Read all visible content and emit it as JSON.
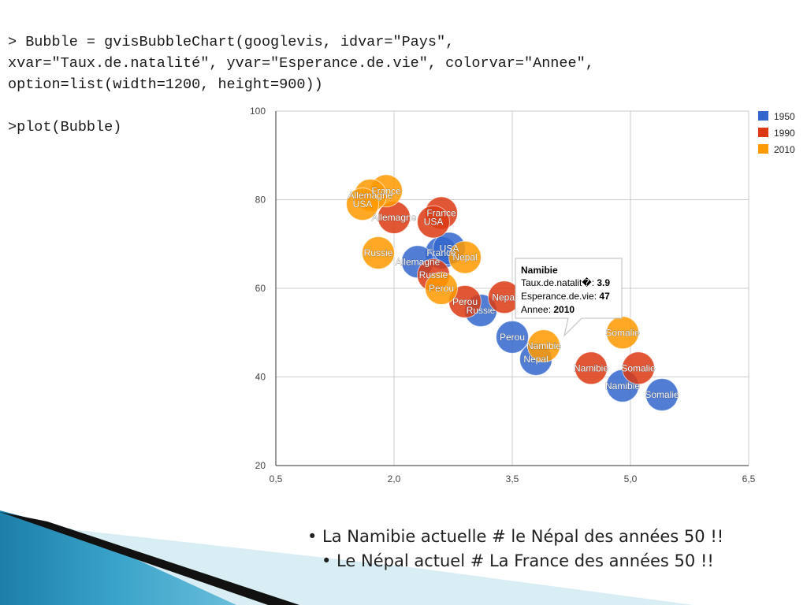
{
  "code_lines": [
    "> Bubble = gvisBubbleChart(googlevis, idvar=\"Pays\",",
    "xvar=\"Taux.de.natalité\", yvar=\"Esperance.de.vie\", colorvar=\"Annee\",",
    "option=list(width=1200, height=900))",
    "",
    ">plot(Bubble)"
  ],
  "bullets": [
    "• La Namibie actuelle # le Népal des années 50 !!",
    "• Le Népal actuel # La France des années 50 !!"
  ],
  "chart_data": {
    "type": "scatter",
    "xlim": [
      0.5,
      6.5
    ],
    "ylim": [
      20,
      100
    ],
    "x_ticks": [
      "0,5",
      "2,0",
      "3,5",
      "5,0",
      "6,5"
    ],
    "y_ticks": [
      "20",
      "40",
      "60",
      "80",
      "100"
    ],
    "grid": true,
    "legend_position": "right",
    "series": [
      {
        "name": "1950",
        "color": "#3366cc",
        "points": [
          {
            "label": "France",
            "x": 2.6,
            "y": 68
          },
          {
            "label": "Allemagne",
            "x": 2.3,
            "y": 66
          },
          {
            "label": "USA",
            "x": 2.7,
            "y": 69
          },
          {
            "label": "Russie",
            "x": 3.1,
            "y": 55
          },
          {
            "label": "Perou",
            "x": 3.5,
            "y": 49
          },
          {
            "label": "Nepal",
            "x": 3.8,
            "y": 44
          },
          {
            "label": "Namibie",
            "x": 4.9,
            "y": 38
          },
          {
            "label": "Somalie",
            "x": 5.4,
            "y": 36
          }
        ]
      },
      {
        "name": "1990",
        "color": "#dc3912",
        "points": [
          {
            "label": "France",
            "x": 2.6,
            "y": 77
          },
          {
            "label": "Allemagne",
            "x": 2.0,
            "y": 76
          },
          {
            "label": "USA",
            "x": 2.5,
            "y": 75
          },
          {
            "label": "Russie",
            "x": 2.5,
            "y": 63
          },
          {
            "label": "Perou",
            "x": 2.9,
            "y": 57
          },
          {
            "label": "Nepal",
            "x": 3.4,
            "y": 58
          },
          {
            "label": "Namibie",
            "x": 4.5,
            "y": 42
          },
          {
            "label": "Somalie",
            "x": 5.1,
            "y": 42
          }
        ]
      },
      {
        "name": "2010",
        "color": "#ff9900",
        "points": [
          {
            "label": "France",
            "x": 1.9,
            "y": 82
          },
          {
            "label": "Allemagne",
            "x": 1.7,
            "y": 81
          },
          {
            "label": "USA",
            "x": 1.6,
            "y": 79
          },
          {
            "label": "Russie",
            "x": 1.8,
            "y": 68
          },
          {
            "label": "Perou",
            "x": 2.6,
            "y": 60
          },
          {
            "label": "Nepal",
            "x": 2.9,
            "y": 67
          },
          {
            "label": "Namibie",
            "x": 3.9,
            "y": 47
          },
          {
            "label": "Somalie",
            "x": 4.9,
            "y": 50
          }
        ]
      }
    ],
    "tooltip": {
      "title": "Namibie",
      "rows": [
        {
          "label": "Taux.de.natalit�: ",
          "value": "3.9"
        },
        {
          "label": "Esperance.de.vie: ",
          "value": "47"
        },
        {
          "label": "Annee: ",
          "value": "2010"
        }
      ]
    }
  }
}
